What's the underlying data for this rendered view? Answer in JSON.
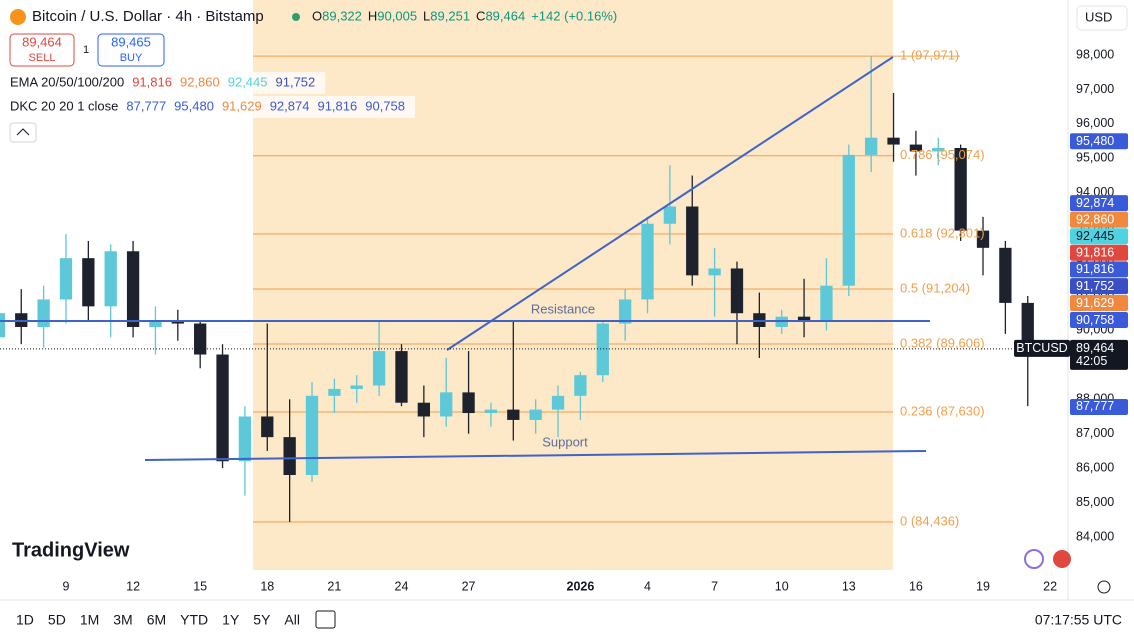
{
  "header": {
    "title": "Bitcoin / U.S. Dollar · 4h · Bitstamp",
    "ohlc": [
      {
        "key": "O",
        "value": "89,322"
      },
      {
        "key": "H",
        "value": "90,005"
      },
      {
        "key": "L",
        "value": "89,251"
      },
      {
        "key": "C",
        "value": "89,464"
      }
    ],
    "change": "+142 (+0.16%)",
    "currency": "USD"
  },
  "trade": {
    "sell_price": "89,464",
    "sell": "SELL",
    "quantity": "1",
    "buy_price": "89,465",
    "buy": "BUY"
  },
  "indicators": [
    {
      "name": "EMA 20/50/100/200",
      "values": [
        {
          "text": "91,816",
          "color": "#e0473f"
        },
        {
          "text": "92,860",
          "color": "#f0883e"
        },
        {
          "text": "92,445",
          "color": "#4fd3e0"
        },
        {
          "text": "91,752",
          "color": "#3a4fc4"
        }
      ]
    },
    {
      "name": "DKC 20 20 1 close",
      "values": [
        {
          "text": "87,777",
          "color": "#3a5bd9"
        },
        {
          "text": "95,480",
          "color": "#3a5bd9"
        },
        {
          "text": "91,629",
          "color": "#f0883e"
        },
        {
          "text": "92,874",
          "color": "#3a5bd9"
        },
        {
          "text": "91,816",
          "color": "#3a5bd9"
        },
        {
          "text": "90,758",
          "color": "#3a5bd9"
        }
      ]
    }
  ],
  "chart_data": {
    "type": "candlestick",
    "x": [
      6,
      7,
      8,
      9,
      10,
      11,
      12,
      13,
      14,
      15,
      16,
      17,
      18,
      19,
      20,
      21,
      22,
      23,
      24,
      25,
      26,
      27,
      28,
      29,
      30,
      31,
      32,
      33,
      34,
      35,
      36,
      37,
      38,
      39,
      40,
      41,
      42,
      43,
      44,
      45,
      46,
      47,
      48,
      49,
      50,
      51,
      52
    ],
    "open": [
      89800,
      90500,
      90100,
      90900,
      92100,
      90700,
      92300,
      90100,
      90300,
      90200,
      89300,
      86200,
      87500,
      86900,
      85800,
      88100,
      88300,
      88400,
      89400,
      87900,
      87500,
      88200,
      87600,
      87700,
      87400,
      87700,
      88100,
      88700,
      90200,
      90900,
      93100,
      93600,
      91600,
      91800,
      90500,
      90100,
      90400,
      90300,
      91300,
      95100,
      95600,
      95400,
      95200,
      95300,
      92900,
      92400,
      90800
    ],
    "high": [
      90800,
      91200,
      91300,
      92800,
      92600,
      92500,
      92600,
      90700,
      90600,
      90300,
      89600,
      87800,
      90200,
      88000,
      88500,
      88600,
      88700,
      90300,
      89600,
      88400,
      89200,
      89400,
      87900,
      90300,
      88000,
      88400,
      88800,
      90300,
      91200,
      93300,
      94800,
      94500,
      92400,
      92000,
      91100,
      90600,
      91500,
      92100,
      95400,
      97971,
      96900,
      95800,
      95600,
      95400,
      93300,
      92600,
      91000
    ],
    "low": [
      88900,
      89600,
      89500,
      90200,
      90300,
      89800,
      89800,
      89300,
      89700,
      88900,
      86000,
      85200,
      86500,
      84436,
      85600,
      87600,
      87900,
      88100,
      87800,
      86900,
      87200,
      87000,
      87200,
      86800,
      87000,
      86900,
      87400,
      88500,
      89700,
      90500,
      92500,
      91300,
      90400,
      89600,
      89200,
      89900,
      89800,
      90000,
      91000,
      94600,
      94900,
      94500,
      94800,
      92600,
      91600,
      89900,
      87800
    ],
    "close": [
      90500,
      90100,
      90900,
      92100,
      90700,
      92300,
      90100,
      90300,
      90200,
      89300,
      86200,
      87500,
      86900,
      85800,
      88100,
      88300,
      88400,
      89400,
      87900,
      87500,
      88200,
      87600,
      87700,
      87400,
      87700,
      88100,
      88700,
      90200,
      90900,
      93100,
      93600,
      91600,
      91800,
      90500,
      90100,
      90400,
      90300,
      91300,
      95100,
      95600,
      95400,
      95200,
      95300,
      92900,
      92400,
      90800,
      89464
    ],
    "up_color": "#5cc8d8",
    "down_color": "#1e222d",
    "xlim": [
      6.05,
      53.8
    ],
    "ylim": [
      83040,
      99600
    ],
    "xticks": [
      9,
      12,
      15,
      18,
      21,
      24,
      27,
      {
        "value": 32,
        "label": "2026"
      },
      {
        "value": 35,
        "label": "4"
      },
      {
        "value": 38,
        "label": "7"
      },
      {
        "value": 41,
        "label": "10"
      },
      {
        "value": 44,
        "label": "13"
      },
      {
        "value": 47,
        "label": "16"
      },
      {
        "value": 50,
        "label": "19"
      },
      {
        "value": 53,
        "label": "22"
      }
    ],
    "yticks": [
      {
        "value": 84000,
        "label": "84,000"
      },
      {
        "value": 85000,
        "label": "85,000"
      },
      {
        "value": 86000,
        "label": "86,000"
      },
      {
        "value": 87000,
        "label": "87,000"
      },
      {
        "value": 88000,
        "label": "88,000"
      },
      {
        "value": 89000,
        "label": "89,000"
      },
      {
        "value": 90000,
        "label": "90,000"
      },
      {
        "value": 91000,
        "label": "91,000"
      },
      {
        "value": 92000,
        "label": "92,000"
      },
      {
        "value": 93000,
        "label": "93,000"
      },
      {
        "value": 94000,
        "label": "94,000"
      },
      {
        "value": 95000,
        "label": "95,000"
      },
      {
        "value": 96000,
        "label": "96,000"
      },
      {
        "value": 97000,
        "label": "97,000"
      },
      {
        "value": 98000,
        "label": "98,000"
      }
    ],
    "fib_color": "#f0a04b",
    "fib_levels": [
      {
        "value": 97971,
        "label": "1 (97,971)"
      },
      {
        "value": 95074,
        "label": "0.786 (95,074)"
      },
      {
        "value": 92801,
        "label": "0.618 (92,801)"
      },
      {
        "value": 91204,
        "label": "0.5 (91,204)"
      },
      {
        "value": 89606,
        "label": "0.382 (89,606)"
      },
      {
        "value": 87630,
        "label": "0.236 (87,630)"
      },
      {
        "value": 84436,
        "label": "0 (84,436)"
      }
    ],
    "price_tags": [
      {
        "value": 95480,
        "label": "95,480",
        "color": "#3a5bd9"
      },
      {
        "value": 92874,
        "label": "92,874",
        "color": "#3a5bd9"
      },
      {
        "value": 92860,
        "label": "92,860",
        "color": "#f0883e"
      },
      {
        "value": 92445,
        "label": "92,445",
        "color": "#4fd3e0"
      },
      {
        "value": 91816,
        "label": "91,816",
        "color": "#e0473f"
      },
      {
        "value": 91816,
        "label": "91,816",
        "color": "#3a5bd9"
      },
      {
        "value": 91752,
        "label": "91,752",
        "color": "#3a4fc4"
      },
      {
        "value": 91629,
        "label": "91,629",
        "color": "#f0883e"
      },
      {
        "value": 90758,
        "label": "90,758",
        "color": "#3a5bd9"
      }
    ],
    "last_price": {
      "name": "BTCUSD",
      "value": 89464,
      "label": "89,464",
      "countdown": "42:05"
    },
    "low_tag": {
      "value": 87777,
      "label": "87,777",
      "color": "#3a5bd9"
    },
    "annotations": [
      "Resistance",
      "Support"
    ]
  },
  "logo": "TradingView",
  "toolbar": {
    "ranges": [
      "1D",
      "5D",
      "1M",
      "3M",
      "6M",
      "YTD",
      "1Y",
      "5Y",
      "All"
    ],
    "clock": "07:17:55 UTC"
  }
}
